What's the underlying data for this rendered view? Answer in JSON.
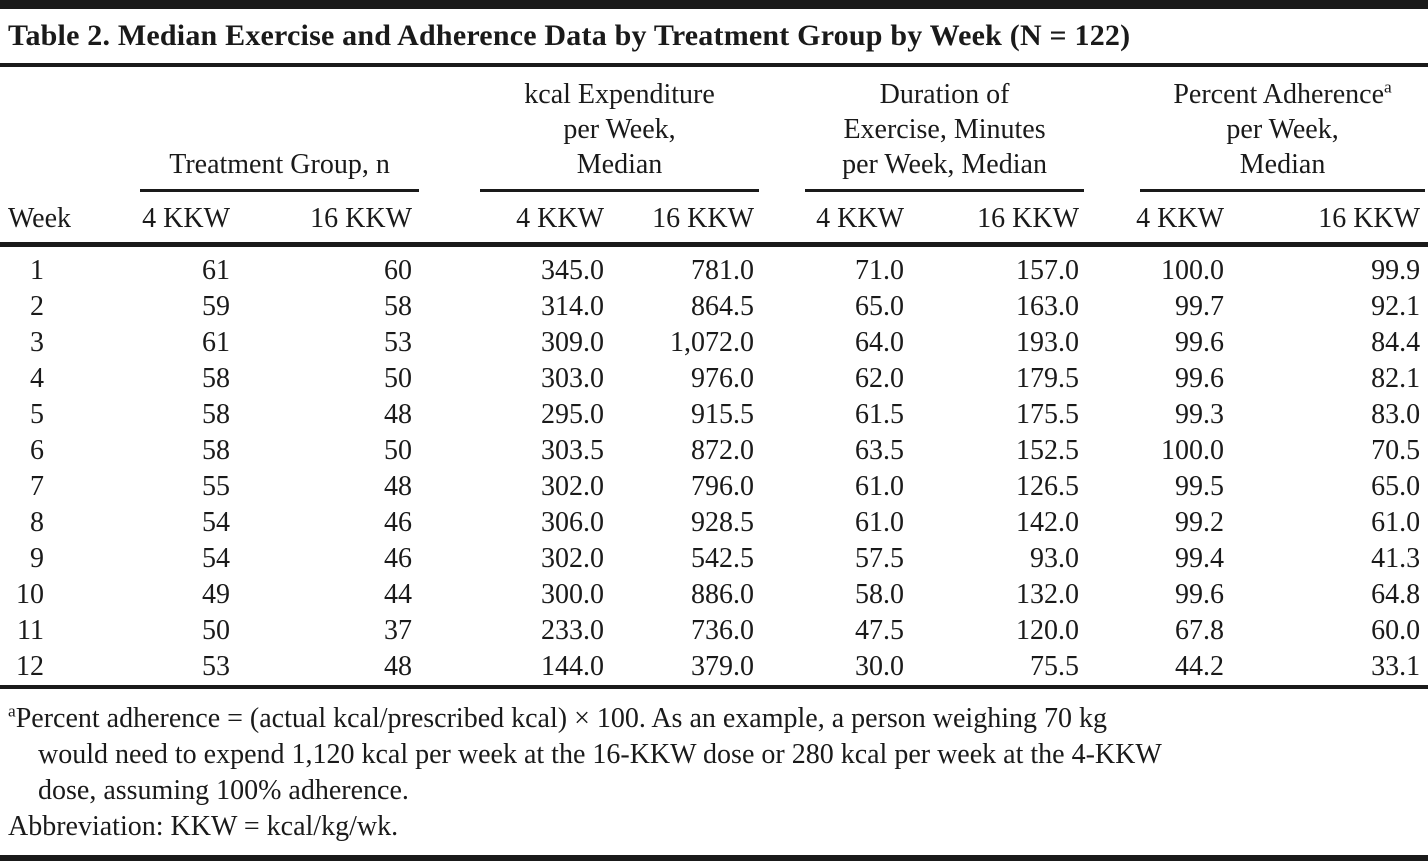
{
  "colors": {
    "ink": "#1a1a1a",
    "background": "#ffffff"
  },
  "title": "Table 2. Median Exercise and Adherence Data by Treatment Group by Week (N = 122)",
  "table": {
    "week_label": "Week",
    "groups": [
      {
        "lines": [
          "Treatment Group, n"
        ],
        "sup": ""
      },
      {
        "lines": [
          "kcal Expenditure",
          "per Week,",
          "Median"
        ],
        "sup": ""
      },
      {
        "lines": [
          "Duration of",
          "Exercise, Minutes",
          "per Week, Median"
        ],
        "sup": ""
      },
      {
        "lines": [
          "Percent Adherence",
          "per Week,",
          "Median"
        ],
        "sup": "a"
      }
    ],
    "subheaders": [
      "4 KKW",
      "16 KKW"
    ],
    "rows": [
      {
        "week": "1",
        "values": [
          "61",
          "60",
          "345.0",
          "781.0",
          "71.0",
          "157.0",
          "100.0",
          "99.9"
        ]
      },
      {
        "week": "2",
        "values": [
          "59",
          "58",
          "314.0",
          "864.5",
          "65.0",
          "163.0",
          "99.7",
          "92.1"
        ]
      },
      {
        "week": "3",
        "values": [
          "61",
          "53",
          "309.0",
          "1,072.0",
          "64.0",
          "193.0",
          "99.6",
          "84.4"
        ]
      },
      {
        "week": "4",
        "values": [
          "58",
          "50",
          "303.0",
          "976.0",
          "62.0",
          "179.5",
          "99.6",
          "82.1"
        ]
      },
      {
        "week": "5",
        "values": [
          "58",
          "48",
          "295.0",
          "915.5",
          "61.5",
          "175.5",
          "99.3",
          "83.0"
        ]
      },
      {
        "week": "6",
        "values": [
          "58",
          "50",
          "303.5",
          "872.0",
          "63.5",
          "152.5",
          "100.0",
          "70.5"
        ]
      },
      {
        "week": "7",
        "values": [
          "55",
          "48",
          "302.0",
          "796.0",
          "61.0",
          "126.5",
          "99.5",
          "65.0"
        ]
      },
      {
        "week": "8",
        "values": [
          "54",
          "46",
          "306.0",
          "928.5",
          "61.0",
          "142.0",
          "99.2",
          "61.0"
        ]
      },
      {
        "week": "9",
        "values": [
          "54",
          "46",
          "302.0",
          "542.5",
          "57.5",
          "93.0",
          "99.4",
          "41.3"
        ]
      },
      {
        "week": "10",
        "values": [
          "49",
          "44",
          "300.0",
          "886.0",
          "58.0",
          "132.0",
          "99.6",
          "64.8"
        ]
      },
      {
        "week": "11",
        "values": [
          "50",
          "37",
          "233.0",
          "736.0",
          "47.5",
          "120.0",
          "67.8",
          "60.0"
        ]
      },
      {
        "week": "12",
        "values": [
          "53",
          "48",
          "144.0",
          "379.0",
          "30.0",
          "75.5",
          "44.2",
          "33.1"
        ]
      }
    ]
  },
  "footnotes": {
    "sup": "a",
    "lines": [
      "Percent adherence = (actual kcal/prescribed kcal) × 100. As an example, a person weighing 70 kg",
      "would need to expend 1,120 kcal per week at the 16-KKW dose or 280 kcal per week at the 4-KKW",
      "dose, assuming 100% adherence."
    ],
    "abbreviation": "Abbreviation: KKW = kcal/kg/wk."
  }
}
